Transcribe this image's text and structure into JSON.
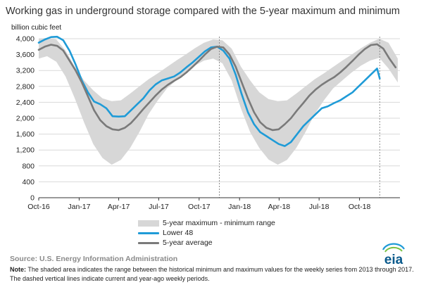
{
  "chart_data": {
    "type": "area",
    "title": "Working gas in underground  storage compared with the 5-year maximum and minimum",
    "ylabel": "billion cubic feet",
    "xlabel": "",
    "ylim": [
      0,
      4000
    ],
    "yticks": [
      0,
      400,
      800,
      1200,
      1600,
      2000,
      2400,
      2800,
      3200,
      3600,
      4000
    ],
    "ytick_labels": [
      "0",
      "400",
      "800",
      "1,200",
      "1,600",
      "2,000",
      "2,400",
      "2,800",
      "3,200",
      "3,600",
      "4,000"
    ],
    "xlim": [
      "2016-10-01",
      "2019-01-01"
    ],
    "xticks": [
      "2016-10-01",
      "2017-01-01",
      "2017-04-01",
      "2017-07-01",
      "2017-10-01",
      "2018-01-01",
      "2018-04-01",
      "2018-07-01",
      "2018-10-01"
    ],
    "xtick_labels": [
      "Oct-16",
      "Jan-17",
      "Apr-17",
      "Jul-17",
      "Oct-17",
      "Jan-18",
      "Apr-18",
      "Jul-18",
      "Oct-18"
    ],
    "grid": "horizontal",
    "legend_position": "bottom",
    "reference_lines": [
      "2017-11-16",
      "2018-11-16"
    ],
    "series": [
      {
        "name": "5-year maximum - minimum range",
        "kind": "band",
        "color": "#d7d7d7",
        "x": [
          "2016-10-01",
          "2016-10-20",
          "2016-11-10",
          "2016-12-01",
          "2016-12-22",
          "2017-01-12",
          "2017-02-02",
          "2017-02-23",
          "2017-03-16",
          "2017-04-06",
          "2017-04-27",
          "2017-05-18",
          "2017-06-08",
          "2017-06-29",
          "2017-07-20",
          "2017-08-10",
          "2017-08-31",
          "2017-09-21",
          "2017-10-12",
          "2017-11-02",
          "2017-11-23",
          "2017-12-14",
          "2018-01-04",
          "2018-01-25",
          "2018-02-15",
          "2018-03-08",
          "2018-03-29",
          "2018-04-19",
          "2018-05-10",
          "2018-05-31",
          "2018-06-21",
          "2018-07-12",
          "2018-08-02",
          "2018-08-23",
          "2018-09-13",
          "2018-10-04",
          "2018-10-25",
          "2018-11-15",
          "2018-12-06",
          "2018-12-27"
        ],
        "max": [
          4000,
          4020,
          3980,
          3700,
          3300,
          2950,
          2700,
          2500,
          2430,
          2450,
          2620,
          2800,
          2980,
          3130,
          3290,
          3450,
          3600,
          3760,
          3900,
          3980,
          3960,
          3750,
          3300,
          2950,
          2650,
          2480,
          2430,
          2450,
          2620,
          2800,
          2980,
          3130,
          3290,
          3450,
          3600,
          3760,
          3900,
          4000,
          3900,
          3500
        ],
        "min": [
          3500,
          3560,
          3420,
          3050,
          2500,
          1900,
          1350,
          1000,
          830,
          950,
          1250,
          1650,
          2100,
          2450,
          2750,
          2950,
          3150,
          3320,
          3450,
          3500,
          3380,
          2950,
          2250,
          1650,
          1250,
          960,
          830,
          950,
          1250,
          1650,
          2100,
          2450,
          2750,
          2950,
          3150,
          3320,
          3450,
          3520,
          3250,
          2900
        ]
      },
      {
        "name": "Lower 48",
        "kind": "line",
        "color": "#1f9bd7",
        "x": [
          "2016-10-01",
          "2016-10-15",
          "2016-10-29",
          "2016-11-12",
          "2016-11-26",
          "2016-12-10",
          "2016-12-24",
          "2017-01-07",
          "2017-01-21",
          "2017-02-04",
          "2017-02-18",
          "2017-03-04",
          "2017-03-18",
          "2017-04-01",
          "2017-04-15",
          "2017-04-29",
          "2017-05-13",
          "2017-05-27",
          "2017-06-10",
          "2017-06-24",
          "2017-07-08",
          "2017-07-22",
          "2017-08-05",
          "2017-08-19",
          "2017-09-02",
          "2017-09-16",
          "2017-09-30",
          "2017-10-14",
          "2017-10-28",
          "2017-11-11",
          "2017-11-25",
          "2017-12-09",
          "2017-12-23",
          "2018-01-06",
          "2018-01-20",
          "2018-02-03",
          "2018-02-17",
          "2018-03-03",
          "2018-03-17",
          "2018-03-31",
          "2018-04-14",
          "2018-04-28",
          "2018-05-12",
          "2018-05-26",
          "2018-06-09",
          "2018-06-23",
          "2018-07-07",
          "2018-07-21",
          "2018-08-04",
          "2018-08-18",
          "2018-09-01",
          "2018-09-15",
          "2018-09-29",
          "2018-10-13",
          "2018-10-27",
          "2018-11-10",
          "2018-11-16"
        ],
        "values": [
          3900,
          3980,
          4040,
          4050,
          3960,
          3700,
          3350,
          2950,
          2650,
          2420,
          2350,
          2250,
          2050,
          2040,
          2050,
          2200,
          2350,
          2500,
          2700,
          2850,
          2950,
          3000,
          3050,
          3150,
          3280,
          3400,
          3540,
          3680,
          3780,
          3800,
          3700,
          3500,
          3100,
          2600,
          2150,
          1850,
          1650,
          1550,
          1450,
          1350,
          1300,
          1400,
          1600,
          1800,
          1950,
          2100,
          2250,
          2300,
          2380,
          2450,
          2550,
          2650,
          2800,
          2950,
          3100,
          3250,
          3000
        ]
      },
      {
        "name": "5-year average",
        "kind": "line",
        "color": "#7a7a7a",
        "x": [
          "2016-10-01",
          "2016-10-15",
          "2016-10-29",
          "2016-11-12",
          "2016-11-26",
          "2016-12-10",
          "2016-12-24",
          "2017-01-07",
          "2017-01-21",
          "2017-02-04",
          "2017-02-18",
          "2017-03-04",
          "2017-03-18",
          "2017-04-01",
          "2017-04-15",
          "2017-04-29",
          "2017-05-13",
          "2017-05-27",
          "2017-06-10",
          "2017-06-24",
          "2017-07-08",
          "2017-07-22",
          "2017-08-05",
          "2017-08-19",
          "2017-09-02",
          "2017-09-16",
          "2017-09-30",
          "2017-10-14",
          "2017-10-28",
          "2017-11-11",
          "2017-11-25",
          "2017-12-09",
          "2017-12-23",
          "2018-01-06",
          "2018-01-20",
          "2018-02-03",
          "2018-02-17",
          "2018-03-03",
          "2018-03-17",
          "2018-03-31",
          "2018-04-14",
          "2018-04-28",
          "2018-05-12",
          "2018-05-26",
          "2018-06-09",
          "2018-06-23",
          "2018-07-07",
          "2018-07-21",
          "2018-08-04",
          "2018-08-18",
          "2018-09-01",
          "2018-09-15",
          "2018-09-29",
          "2018-10-13",
          "2018-10-27",
          "2018-11-10",
          "2018-11-24",
          "2018-12-08",
          "2018-12-22"
        ],
        "values": [
          3720,
          3800,
          3850,
          3820,
          3700,
          3450,
          3200,
          2900,
          2550,
          2200,
          1950,
          1800,
          1720,
          1700,
          1760,
          1880,
          2050,
          2230,
          2400,
          2570,
          2720,
          2840,
          2940,
          3030,
          3150,
          3290,
          3440,
          3600,
          3740,
          3800,
          3780,
          3600,
          3300,
          2900,
          2500,
          2150,
          1900,
          1760,
          1700,
          1720,
          1850,
          2000,
          2200,
          2380,
          2570,
          2720,
          2840,
          2940,
          3030,
          3150,
          3290,
          3440,
          3600,
          3740,
          3840,
          3860,
          3750,
          3500,
          3280
        ]
      }
    ]
  },
  "legend": {
    "range_label": "5-year maximum - minimum range",
    "lower48_label": "Lower 48",
    "avg_label": "5-year average"
  },
  "footer": {
    "source": "Source:  U.S. Energy Information Administration",
    "note_label": "Note:",
    "note_text": " The shaded area indicates the range between the historical minimum and maximum values for the weekly series from 2013 through 2017. The dashed vertical lines indicate current and year-ago weekly periods."
  },
  "logo": {
    "text": "eia",
    "colors": [
      "#1f9bd7",
      "#7ac143",
      "#0a5a8c"
    ]
  }
}
